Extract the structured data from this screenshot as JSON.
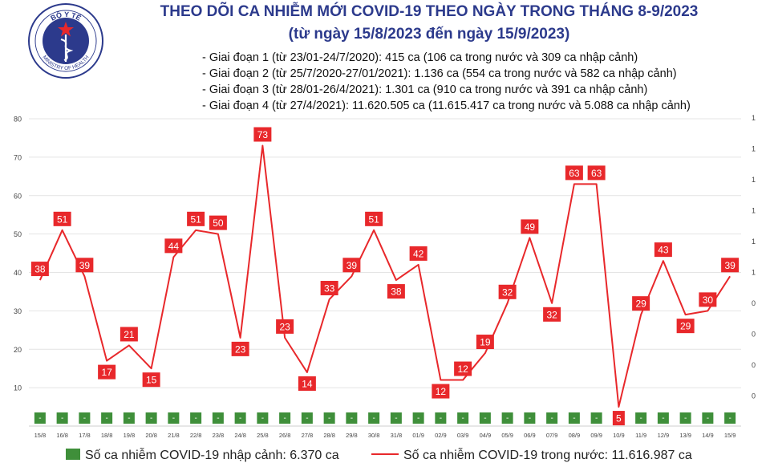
{
  "logo": {
    "text_top": "BỘ Y TẾ",
    "text_bottom": "MINISTRY OF HEALTH",
    "color": "#2c3a8c"
  },
  "header": {
    "title": "THEO DÕI CA NHIỄM MỚI COVID-19 THEO NGÀY TRONG THÁNG 8-9/2023",
    "subtitle": "(từ ngày 15/8/2023 đến ngày 15/9/2023)"
  },
  "notes": [
    "- Giai đoạn 1 (từ 23/01-24/7/2020): 415 ca (106 ca trong nước và 309 ca nhập cảnh)",
    "- Giai đoạn 2 (từ 25/7/2020-27/01/2021): 1.136 ca (554 ca trong nước và 582 ca nhập cảnh)",
    "- Giai đoạn 3 (từ 28/01-26/4/2021): 1.301 ca (910 ca trong nước và 391 ca nhập cảnh)",
    "- Giai đoạn 4 (từ 27/4/2021): 11.620.505 ca (11.615.417 ca trong nước và 5.088 ca nhập cảnh)"
  ],
  "legend": {
    "imported": "Số ca nhiễm COVID-19 nhập cảnh: 6.370 ca",
    "domestic": "Số ca nhiễm COVID-19 trong nước: 11.616.987 ca"
  },
  "chart_data": {
    "type": "line",
    "categories": [
      "15/8",
      "16/8",
      "17/8",
      "18/8",
      "19/8",
      "20/8",
      "21/8",
      "22/8",
      "23/8",
      "24/8",
      "25/8",
      "26/8",
      "27/8",
      "28/8",
      "29/8",
      "30/8",
      "31/8",
      "01/9",
      "02/9",
      "03/9",
      "04/9",
      "05/9",
      "06/9",
      "07/9",
      "08/9",
      "09/9",
      "10/9",
      "11/9",
      "12/9",
      "13/9",
      "14/9",
      "15/9"
    ],
    "series": [
      {
        "name": "Số ca nhiễm COVID-19 trong nước: 11.616.987 ca",
        "type": "line",
        "axis": "left",
        "color": "#e8282b",
        "values": [
          38,
          51,
          39,
          17,
          21,
          15,
          44,
          51,
          50,
          23,
          73,
          23,
          14,
          33,
          39,
          51,
          38,
          42,
          12,
          12,
          19,
          32,
          49,
          32,
          63,
          63,
          5,
          29,
          43,
          29,
          30,
          39
        ]
      },
      {
        "name": "Số ca nhiễm COVID-19 nhập cảnh: 6.370 ca",
        "type": "bar",
        "axis": "right",
        "color": "#3f8f3a",
        "label": "-",
        "values": [
          0,
          0,
          0,
          0,
          0,
          0,
          0,
          0,
          0,
          0,
          0,
          0,
          0,
          0,
          0,
          0,
          0,
          0,
          0,
          0,
          0,
          0,
          0,
          0,
          0,
          0,
          0,
          0,
          0,
          0,
          0,
          0
        ]
      }
    ],
    "y_left": {
      "ylim": [
        0,
        80
      ],
      "ticks": [
        10,
        20,
        30,
        40,
        50,
        60,
        70,
        80
      ]
    },
    "y_right": {
      "tick_labels": [
        "0",
        "0",
        "0",
        "0",
        "1",
        "1",
        "1",
        "1",
        "1",
        "1"
      ]
    },
    "grid": true,
    "label_color": "#e8282b"
  }
}
